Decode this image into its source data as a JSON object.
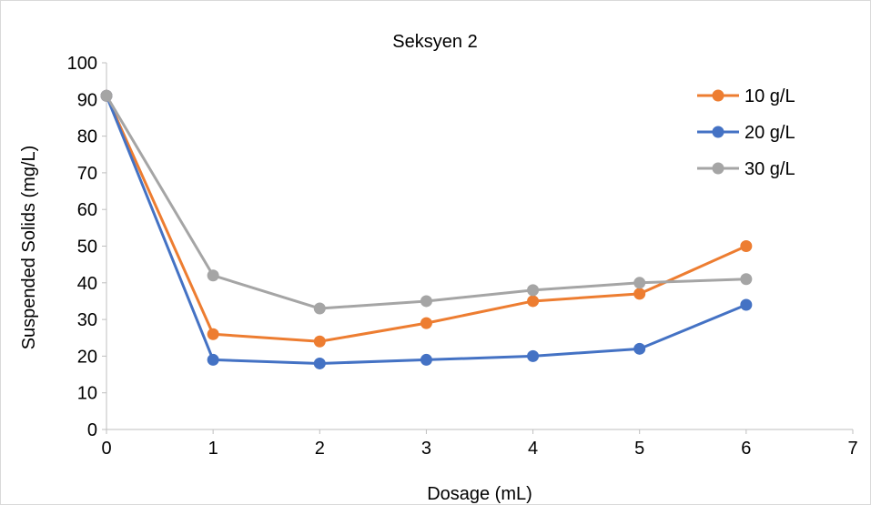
{
  "chart_data": {
    "type": "line",
    "title": "Seksyen 2",
    "xlabel": "Dosage (mL)",
    "ylabel": "Suspended Solids (mg/L)",
    "x": [
      0,
      1,
      2,
      3,
      4,
      5,
      6
    ],
    "xlim": [
      0,
      7
    ],
    "ylim": [
      0,
      100
    ],
    "xticks": [
      0,
      1,
      2,
      3,
      4,
      5,
      6,
      7
    ],
    "yticks": [
      0,
      10,
      20,
      30,
      40,
      50,
      60,
      70,
      80,
      90,
      100
    ],
    "grid": false,
    "legend_position": "top-right",
    "series": [
      {
        "name": "10 g/L",
        "color": "#ED7D31",
        "values": [
          91,
          26,
          24,
          29,
          35,
          37,
          50
        ]
      },
      {
        "name": "20 g/L",
        "color": "#4472C4",
        "values": [
          91,
          19,
          18,
          19,
          20,
          22,
          34
        ]
      },
      {
        "name": "30 g/L",
        "color": "#A5A5A5",
        "values": [
          91,
          42,
          33,
          35,
          38,
          40,
          41
        ]
      }
    ]
  }
}
